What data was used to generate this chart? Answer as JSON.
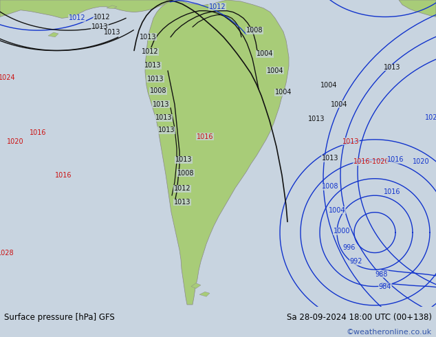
{
  "title_left": "Surface pressure [hPa] GFS",
  "title_right": "Sa 28-09-2024 18:00 UTC (00+138)",
  "credit": "©weatheronline.co.uk",
  "bg_color": "#c8d4e0",
  "land_green": "#a8cc78",
  "land_edge": "#888888",
  "figsize": [
    6.34,
    4.9
  ],
  "dpi": 100,
  "bar_color": "#e0e0e0",
  "title_fontsize": 8.5,
  "credit_color": "#3355aa",
  "credit_fontsize": 8,
  "blue": "#1133cc",
  "red": "#cc1111",
  "black": "#111111",
  "lw_isobar": 1.0
}
